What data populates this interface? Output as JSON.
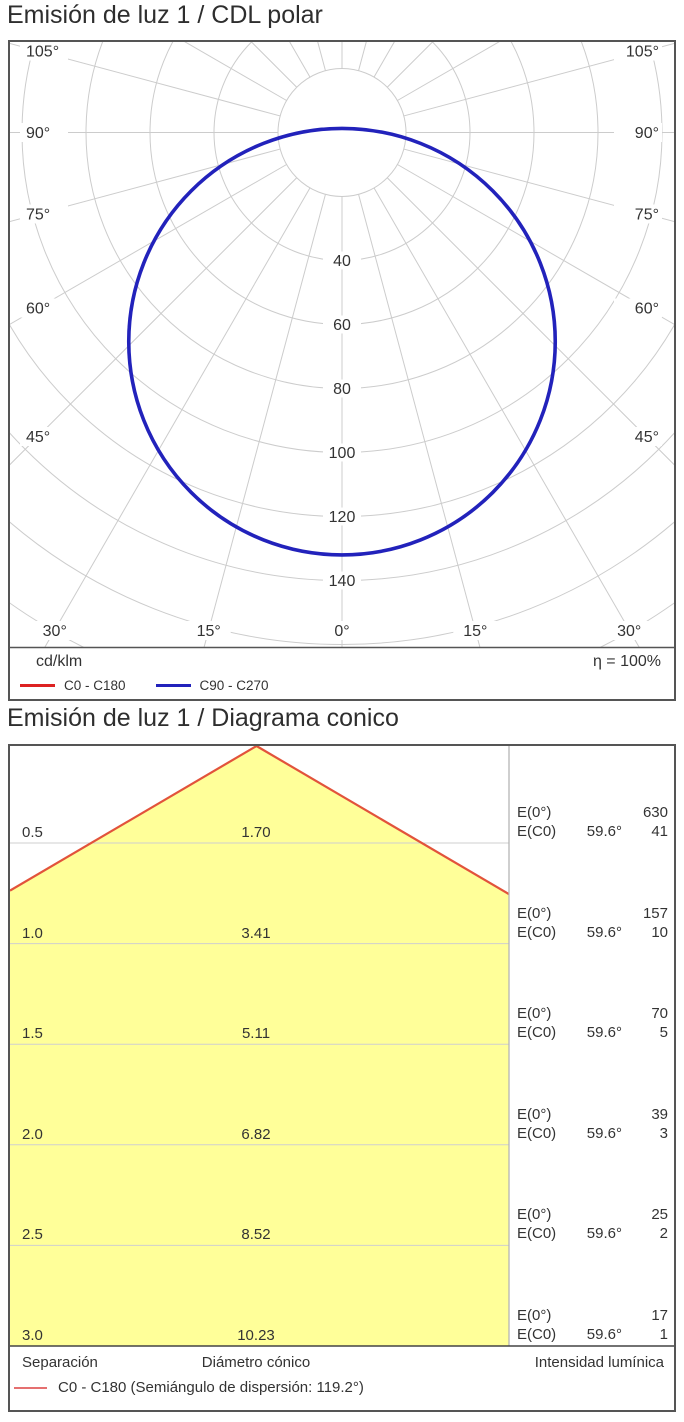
{
  "chart_data": [
    {
      "type": "polar",
      "title": "Emisión de luz 1 / CDL polar",
      "unit": "cd/klm",
      "efficiency": "η = 100%",
      "gamma_axis_labels_deg": [
        0,
        15,
        30,
        45,
        60,
        75,
        90,
        105
      ],
      "radial_ticks_cd_klm": [
        40,
        60,
        80,
        100,
        120,
        140
      ],
      "radial_grid_step": 20,
      "ray_step_deg": 15,
      "grid_color": "#cccccc",
      "series": [
        {
          "name": "C0 - C180",
          "color": "#dd2222",
          "gamma_deg": [
            -90,
            -75,
            -60,
            -45,
            -30,
            -15,
            0,
            15,
            30,
            45,
            60,
            75,
            90
          ],
          "values_cd_klm": [
            13,
            38,
            68,
            94,
            114,
            127,
            132,
            127,
            114,
            94,
            68,
            38,
            13
          ]
        },
        {
          "name": "C90 - C270",
          "color": "#2222bb",
          "gamma_deg": [
            -90,
            -75,
            -60,
            -45,
            -30,
            -15,
            0,
            15,
            30,
            45,
            60,
            75,
            90
          ],
          "values_cd_klm": [
            13,
            38,
            68,
            94,
            114,
            127,
            132,
            127,
            114,
            94,
            68,
            38,
            13
          ]
        }
      ]
    },
    {
      "type": "cone",
      "title": "Emisión de luz 1 / Diagrama conico",
      "half_angle_deg": 59.6,
      "beam_angle": "59.6°",
      "e0_label": "E(0°)",
      "ec0_label": "E(C0)",
      "cone_color": "#ffff99",
      "edge_color": "#e2533b",
      "grid_color": "#cfcfcf",
      "rows": [
        {
          "separation": "0.5",
          "diameter": "1.70",
          "E0": "630",
          "EC0": "41"
        },
        {
          "separation": "1.0",
          "diameter": "3.41",
          "E0": "157",
          "EC0": "10"
        },
        {
          "separation": "1.5",
          "diameter": "5.11",
          "E0": "70",
          "EC0": "5"
        },
        {
          "separation": "2.0",
          "diameter": "6.82",
          "E0": "39",
          "EC0": "3"
        },
        {
          "separation": "2.5",
          "diameter": "8.52",
          "E0": "25",
          "EC0": "2"
        },
        {
          "separation": "3.0",
          "diameter": "10.23",
          "E0": "17",
          "EC0": "1"
        }
      ],
      "footer": {
        "separation_label": "Separación",
        "diameter_label": "Diámetro cónico",
        "intensity_label": "Intensidad lumínica",
        "legend_label": "C0 - C180 (Semiángulo de dispersión: 119.2°)",
        "legend_color": "#e57070"
      }
    }
  ]
}
